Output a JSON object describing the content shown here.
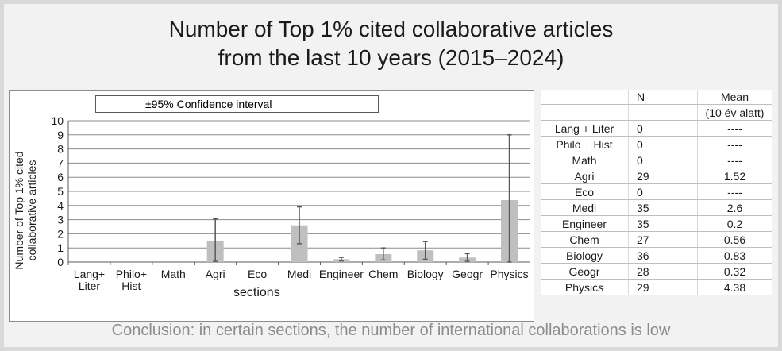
{
  "title_line1": "Number of Top 1% cited collaborative articles",
  "title_line2": "from the last 10 years (2015–2024)",
  "legend_text": "±95% Confidence interval",
  "conclusion": "Conclusion: in certain sections, the number of international collaborations is low",
  "chart_data": {
    "type": "bar",
    "ylabel_line1": "Number of Top 1% cited",
    "ylabel_line2": "collaborative articles",
    "xlabel": "sections",
    "ylim": [
      0,
      10
    ],
    "yticks": [
      0,
      1,
      2,
      3,
      4,
      5,
      6,
      7,
      8,
      9,
      10
    ],
    "categories": [
      "Lang+\nLiter",
      "Philo+\nHist",
      "Math",
      "Agri",
      "Eco",
      "Medi",
      "Engineer",
      "Chem",
      "Biology",
      "Geogr",
      "Physics"
    ],
    "values": [
      0,
      0,
      0,
      1.52,
      0,
      2.6,
      0.2,
      0.56,
      0.83,
      0.32,
      4.38
    ],
    "ci_low": [
      null,
      null,
      null,
      0.05,
      null,
      1.3,
      0.08,
      0.15,
      0.2,
      0.05,
      0
    ],
    "ci_high": [
      null,
      null,
      null,
      3.05,
      null,
      3.9,
      0.33,
      1.0,
      1.45,
      0.6,
      9.0
    ],
    "bar_color": "#bfbfbf",
    "errorbar_color": "#595959",
    "grid": true,
    "legend": "top-center"
  },
  "table": {
    "header": [
      "",
      "N",
      "Mean"
    ],
    "subheader": [
      "",
      "",
      "(10 év alatt)"
    ],
    "rows": [
      [
        "Lang + Liter",
        "0",
        "----"
      ],
      [
        "Philo + Hist",
        "0",
        "----"
      ],
      [
        "Math",
        "0",
        "----"
      ],
      [
        "Agri",
        "29",
        "1.52"
      ],
      [
        "Eco",
        "0",
        "----"
      ],
      [
        "Medi",
        "35",
        "2.6"
      ],
      [
        "Engineer",
        "35",
        "0.2"
      ],
      [
        "Chem",
        "27",
        "0.56"
      ],
      [
        "Biology",
        "36",
        "0.83"
      ],
      [
        "Geogr",
        "28",
        "0.32"
      ],
      [
        "Physics",
        "29",
        "4.38"
      ]
    ]
  }
}
